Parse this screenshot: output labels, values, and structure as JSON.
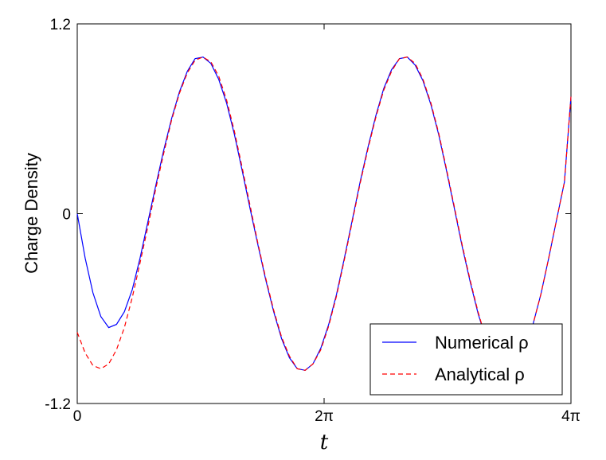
{
  "chart_data": {
    "type": "line",
    "title": "",
    "xlabel": "t",
    "ylabel": "Charge Density",
    "xlim": [
      0,
      12.566
    ],
    "ylim": [
      -1.2,
      1.2
    ],
    "x_ticks": [
      {
        "value": 0,
        "label": "0"
      },
      {
        "value": 6.283,
        "label": "2π"
      },
      {
        "value": 12.566,
        "label": "4π"
      }
    ],
    "y_ticks": [
      {
        "value": 1.2,
        "label": "1.2"
      },
      {
        "value": 0,
        "label": "0"
      },
      {
        "value": -1.2,
        "label": "-1.2"
      }
    ],
    "grid": false,
    "legend_position": "bottom-right",
    "series": [
      {
        "name": "Numerical ρ",
        "color": "#0000ff",
        "dash": "solid",
        "x": [
          0,
          0.2,
          0.4,
          0.6,
          0.8,
          1.0,
          1.2,
          1.4,
          1.6,
          1.8,
          2.0,
          2.2,
          2.4,
          2.6,
          2.8,
          3.0,
          3.2,
          3.4,
          3.6,
          3.8,
          4.0,
          4.2,
          4.4,
          4.6,
          4.8,
          5.0,
          5.2,
          5.4,
          5.6,
          5.8,
          6.0,
          6.2,
          6.4,
          6.6,
          6.8,
          7.0,
          7.2,
          7.4,
          7.6,
          7.8,
          8.0,
          8.2,
          8.4,
          8.6,
          8.8,
          9.0,
          9.2,
          9.4,
          9.6,
          9.8,
          10.0,
          10.2,
          10.4,
          10.6,
          10.8,
          11.0,
          11.2,
          11.4,
          11.6,
          11.8,
          12.0,
          12.2,
          12.4,
          12.566
        ],
        "y": [
          0,
          -0.28,
          -0.5,
          -0.65,
          -0.72,
          -0.7,
          -0.62,
          -0.48,
          -0.28,
          -0.05,
          0.18,
          0.4,
          0.6,
          0.77,
          0.9,
          0.98,
          0.99,
          0.95,
          0.85,
          0.7,
          0.5,
          0.27,
          0.03,
          -0.2,
          -0.42,
          -0.62,
          -0.79,
          -0.91,
          -0.98,
          -0.99,
          -0.95,
          -0.85,
          -0.7,
          -0.51,
          -0.28,
          -0.04,
          0.2,
          0.42,
          0.62,
          0.79,
          0.91,
          0.98,
          0.99,
          0.94,
          0.84,
          0.69,
          0.5,
          0.27,
          0.03,
          -0.21,
          -0.43,
          -0.63,
          -0.79,
          -0.91,
          -0.98,
          -0.99,
          -0.95,
          -0.85,
          -0.7,
          -0.51,
          -0.28,
          -0.04,
          0.2,
          0.74
        ]
      },
      {
        "name": "Analytical ρ",
        "color": "#ff0000",
        "dash": "dashed",
        "x": [
          0,
          0.2,
          0.4,
          0.6,
          0.8,
          1.0,
          1.2,
          1.4,
          1.6,
          1.8,
          2.0,
          2.2,
          2.4,
          2.6,
          2.8,
          3.0,
          3.2,
          3.4,
          3.6,
          3.8,
          4.0,
          4.2,
          4.4,
          4.6,
          4.8,
          5.0,
          5.2,
          5.4,
          5.6,
          5.8,
          6.0,
          6.2,
          6.4,
          6.6,
          6.8,
          7.0,
          7.2,
          7.4,
          7.6,
          7.8,
          8.0,
          8.2,
          8.4,
          8.6,
          8.8,
          9.0,
          9.2,
          9.4,
          9.6,
          9.8,
          10.0,
          10.2,
          10.4,
          10.6,
          10.8,
          11.0,
          11.2,
          11.4,
          11.6,
          11.8,
          12.0,
          12.2,
          12.4,
          12.566
        ],
        "y": [
          -0.75,
          -0.88,
          -0.96,
          -0.98,
          -0.95,
          -0.86,
          -0.72,
          -0.53,
          -0.31,
          -0.08,
          0.16,
          0.38,
          0.59,
          0.76,
          0.89,
          0.97,
          0.99,
          0.96,
          0.87,
          0.72,
          0.52,
          0.29,
          0.05,
          -0.19,
          -0.41,
          -0.61,
          -0.78,
          -0.9,
          -0.98,
          -0.99,
          -0.95,
          -0.86,
          -0.71,
          -0.52,
          -0.29,
          -0.05,
          0.19,
          0.41,
          0.61,
          0.78,
          0.9,
          0.98,
          0.99,
          0.95,
          0.85,
          0.7,
          0.51,
          0.28,
          0.04,
          -0.2,
          -0.42,
          -0.62,
          -0.79,
          -0.91,
          -0.98,
          -0.99,
          -0.95,
          -0.85,
          -0.7,
          -0.51,
          -0.28,
          -0.04,
          0.2,
          0.74
        ]
      }
    ]
  }
}
